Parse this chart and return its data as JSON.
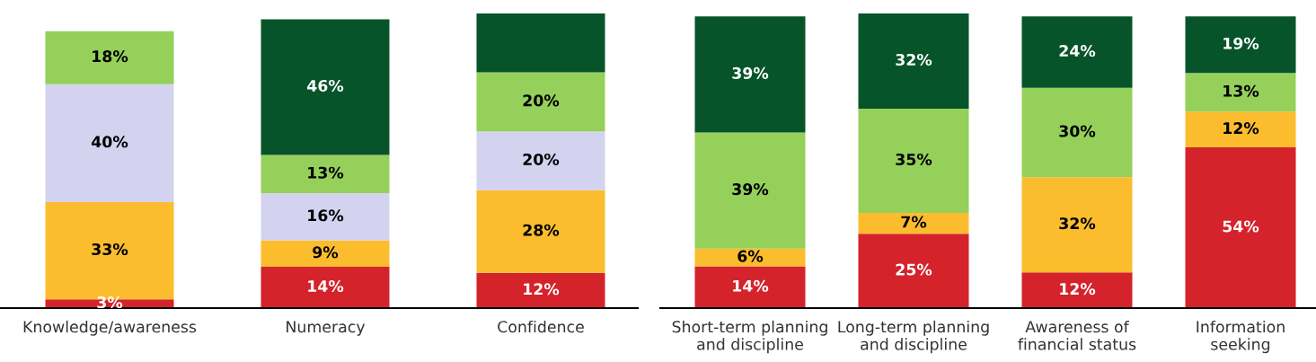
{
  "chart_data": [
    {
      "type": "bar",
      "stacked": true,
      "categories": [
        "Knowledge/awareness",
        "Numeracy",
        "Confidence"
      ],
      "series": [
        {
          "color": "#d4232b",
          "values": [
            3,
            14,
            12
          ],
          "value_labels": [
            "3%",
            "14%",
            "12%"
          ]
        },
        {
          "color": "#fbbd2e",
          "values": [
            33,
            9,
            28
          ],
          "value_labels": [
            "33%",
            "9%",
            "28%"
          ]
        },
        {
          "color": "#d3d3f0",
          "values": [
            40,
            16,
            20
          ],
          "value_labels": [
            "40%",
            "16%",
            "20%"
          ]
        },
        {
          "color": "#95d05a",
          "values": [
            18,
            13,
            20
          ],
          "value_labels": [
            "18%",
            "13%",
            "20%"
          ]
        },
        {
          "color": "#07542b",
          "values": [
            null,
            46,
            20
          ],
          "value_labels": [
            null,
            "46%",
            null
          ]
        }
      ]
    },
    {
      "type": "bar",
      "stacked": true,
      "categories": [
        "Short-term planning\nand discipline",
        "Long-term planning\nand discipline",
        "Awareness of\nfinancial status",
        "Information\nseeking"
      ],
      "series": [
        {
          "color": "#d4232b",
          "values": [
            14,
            25,
            12,
            54
          ],
          "value_labels": [
            "14%",
            "25%",
            "12%",
            "54%"
          ]
        },
        {
          "color": "#fbbd2e",
          "values": [
            6,
            7,
            32,
            12
          ],
          "value_labels": [
            "6%",
            "7%",
            "32%",
            "12%"
          ]
        },
        {
          "color": "#95d05a",
          "values": [
            39,
            35,
            30,
            13
          ],
          "value_labels": [
            "39%",
            "35%",
            "30%",
            "13%"
          ]
        },
        {
          "color": "#07542b",
          "values": [
            39,
            32,
            24,
            19
          ],
          "value_labels": [
            "39%",
            "32%",
            "24%",
            "19%"
          ]
        }
      ]
    }
  ]
}
